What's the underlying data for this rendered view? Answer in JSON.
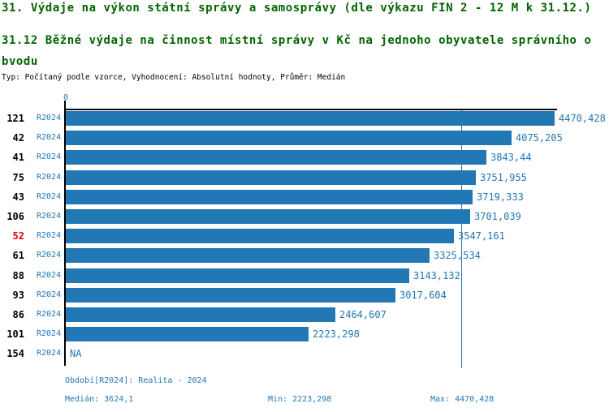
{
  "header": {
    "title": "31. Výdaje na výkon státní správy a samosprávy (dle výkazu FIN 2 - 12 M k 31.12.)",
    "subtitle_lines": {
      "0": "31.12 Běžné výdaje na činnost místní správy v Kč na jednoho obyvatele správního o",
      "1": "bvodu"
    },
    "meta": "Typ: Počítaný podle vzorce, Vyhodnocení: Absolutní hodnoty, Průměr: Medián"
  },
  "chart_data": {
    "type": "bar",
    "orientation": "horizontal",
    "title": "31.12 Běžné výdaje na činnost místní správy v Kč na jednoho obyvatele správního obvodu",
    "xlabel": "",
    "ylabel": "",
    "xlim": [
      0,
      4470.428
    ],
    "zero_tick_label": "0",
    "median_value": 3624.1,
    "bar_color": "#2277b5",
    "highlight_color": "#e00000",
    "text_color": "#2277b5",
    "rows": [
      {
        "rank": "121",
        "period": "R2024",
        "value": 4470.428,
        "value_label": "4470,428",
        "highlight": false
      },
      {
        "rank": "42",
        "period": "R2024",
        "value": 4075.205,
        "value_label": "4075,205",
        "highlight": false
      },
      {
        "rank": "41",
        "period": "R2024",
        "value": 3843.44,
        "value_label": "3843,44",
        "highlight": false
      },
      {
        "rank": "75",
        "period": "R2024",
        "value": 3751.955,
        "value_label": "3751,955",
        "highlight": false
      },
      {
        "rank": "43",
        "period": "R2024",
        "value": 3719.333,
        "value_label": "3719,333",
        "highlight": false
      },
      {
        "rank": "106",
        "period": "R2024",
        "value": 3701.039,
        "value_label": "3701,039",
        "highlight": false
      },
      {
        "rank": "52",
        "period": "R2024",
        "value": 3547.161,
        "value_label": "3547,161",
        "highlight": true
      },
      {
        "rank": "61",
        "period": "R2024",
        "value": 3325.534,
        "value_label": "3325,534",
        "highlight": false
      },
      {
        "rank": "88",
        "period": "R2024",
        "value": 3143.132,
        "value_label": "3143,132",
        "highlight": false
      },
      {
        "rank": "93",
        "period": "R2024",
        "value": 3017.604,
        "value_label": "3017,604",
        "highlight": false
      },
      {
        "rank": "86",
        "period": "R2024",
        "value": 2464.607,
        "value_label": "2464,607",
        "highlight": false
      },
      {
        "rank": "101",
        "period": "R2024",
        "value": 2223.298,
        "value_label": "2223,298",
        "highlight": false
      },
      {
        "rank": "154",
        "period": "R2024",
        "value": null,
        "value_label": "NA",
        "highlight": false
      }
    ]
  },
  "footer": {
    "period_label": "Období[R2024]: Realita - 2024",
    "median_label": "Medián: 3624,1",
    "min_label": "Min: 2223,298",
    "max_label": "Max: 4470,428"
  }
}
